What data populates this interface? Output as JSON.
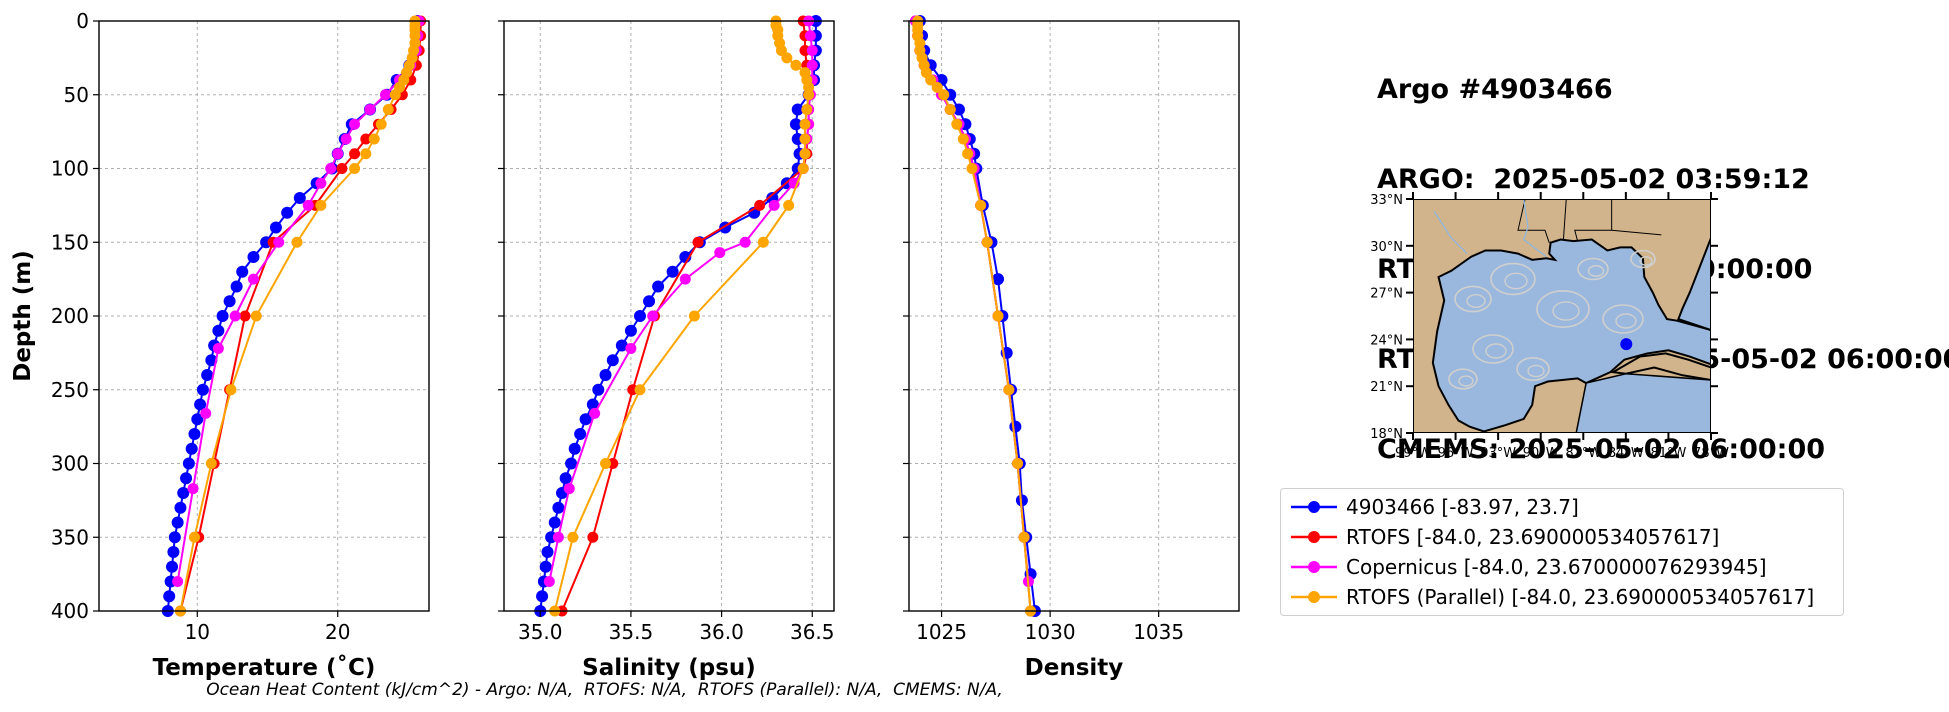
{
  "title_lines": [
    "Argo #4903466",
    "ARGO:  2025-05-02 03:59:12",
    "RTOFS: 2025-05-02 00:00:00",
    "RTOFS (Parallel): 2025-05-02 06:00:00",
    "CMEMS: 2025-05-02 06:00:00"
  ],
  "footer": "Ocean Heat Content (kJ/cm^2) - Argo: N/A,  RTOFS: N/A,  RTOFS (Parallel): N/A,  CMEMS: N/A,",
  "colors": {
    "argo": "#0000ff",
    "rtofs": "#ff0000",
    "copernicus": "#ff00ff",
    "parallel": "#ffa500",
    "land": "#d2b48c",
    "ocean": "#9ab8dd",
    "stream": "#cfcfcf"
  },
  "legend": [
    {
      "label": "4903466 [-83.97, 23.7]",
      "color": "#0000ff"
    },
    {
      "label": "RTOFS [-84.0, 23.690000534057617]",
      "color": "#ff0000"
    },
    {
      "label": "Copernicus [-84.0, 23.670000076293945]",
      "color": "#ff00ff"
    },
    {
      "label": "RTOFS (Parallel) [-84.0, 23.690000534057617]",
      "color": "#ffa500"
    }
  ],
  "map": {
    "lat_labels": [
      "33°N",
      "30°N",
      "27°N",
      "24°N",
      "21°N",
      "18°N"
    ],
    "lon_labels": [
      "99°W",
      "96°W",
      "93°W",
      "90°W",
      "87°W",
      "84°W",
      "81°W",
      "78°W"
    ],
    "lon_range": [
      -99,
      -78
    ],
    "lat_range": [
      18,
      33
    ],
    "float_position": [
      -83.97,
      23.7
    ]
  },
  "chart_data": [
    {
      "type": "line",
      "xlabel": "Temperature (˚C)",
      "ylabel": "Depth (m)",
      "xlim": [
        3,
        26.5
      ],
      "ylim": [
        400,
        0
      ],
      "xticks": [
        10,
        20
      ],
      "yticks": [
        0,
        50,
        100,
        150,
        200,
        250,
        300,
        350,
        400
      ],
      "grid": true,
      "series": [
        {
          "name": "4903466",
          "color": "#0000ff",
          "depth": [
            0,
            10,
            20,
            30,
            40,
            50,
            60,
            70,
            80,
            90,
            100,
            110,
            120,
            130,
            140,
            150,
            160,
            170,
            180,
            190,
            200,
            210,
            220,
            230,
            240,
            250,
            260,
            270,
            280,
            290,
            300,
            310,
            320,
            330,
            340,
            350,
            360,
            370,
            380,
            390,
            400
          ],
          "values": [
            25.7,
            25.6,
            25.5,
            25.1,
            24.2,
            23.5,
            22.3,
            21.0,
            20.5,
            20.0,
            19.6,
            18.5,
            17.3,
            16.4,
            15.6,
            14.9,
            14.0,
            13.2,
            12.8,
            12.3,
            11.8,
            11.5,
            11.2,
            11.0,
            10.7,
            10.4,
            10.2,
            10.0,
            9.8,
            9.6,
            9.4,
            9.2,
            9.0,
            8.8,
            8.6,
            8.4,
            8.3,
            8.2,
            8.1,
            8.0,
            7.9
          ]
        },
        {
          "name": "RTOFS",
          "color": "#ff0000",
          "depth": [
            0,
            10,
            20,
            30,
            40,
            50,
            60,
            70,
            80,
            90,
            100,
            125,
            150,
            200,
            250,
            300,
            350,
            400
          ],
          "values": [
            25.9,
            25.9,
            25.8,
            25.6,
            25.2,
            24.6,
            23.8,
            22.9,
            22.0,
            21.2,
            20.3,
            18.4,
            15.4,
            13.4,
            12.3,
            11.2,
            10.1,
            8.8
          ]
        },
        {
          "name": "Copernicus",
          "color": "#ff00ff",
          "depth": [
            0,
            10,
            20,
            30,
            40,
            50,
            60,
            70,
            80,
            90,
            100,
            110,
            125,
            150,
            175,
            200,
            222,
            266,
            317,
            380
          ],
          "values": [
            25.8,
            25.7,
            25.6,
            25.2,
            24.4,
            23.4,
            22.3,
            21.2,
            20.6,
            20.0,
            19.5,
            18.8,
            17.9,
            15.8,
            14.0,
            12.7,
            11.5,
            10.6,
            9.7,
            8.6
          ]
        },
        {
          "name": "RTOFS (Parallel)",
          "color": "#ffa500",
          "depth": [
            0,
            3,
            6,
            10,
            15,
            20,
            25,
            30,
            35,
            40,
            45,
            50,
            60,
            70,
            80,
            90,
            100,
            125,
            150,
            200,
            250,
            300,
            350,
            400
          ],
          "values": [
            25.5,
            25.5,
            25.5,
            25.5,
            25.5,
            25.4,
            25.3,
            25.1,
            24.9,
            24.7,
            24.4,
            24.1,
            23.6,
            23.1,
            22.6,
            22.0,
            21.2,
            18.8,
            17.1,
            14.2,
            12.4,
            11.0,
            9.8,
            8.8
          ]
        }
      ]
    },
    {
      "type": "line",
      "xlabel": "Salinity (psu)",
      "ylabel": "",
      "xlim": [
        34.8,
        36.62
      ],
      "ylim": [
        400,
        0
      ],
      "xticks": [
        35.0,
        35.5,
        36.0,
        36.5
      ],
      "yticks": [
        0,
        50,
        100,
        150,
        200,
        250,
        300,
        350,
        400
      ],
      "grid": true,
      "series": [
        {
          "name": "4903466",
          "color": "#0000ff",
          "depth": [
            0,
            10,
            20,
            30,
            40,
            50,
            60,
            70,
            80,
            90,
            100,
            110,
            120,
            130,
            140,
            150,
            160,
            170,
            180,
            190,
            200,
            210,
            220,
            230,
            240,
            250,
            260,
            270,
            280,
            290,
            300,
            310,
            320,
            330,
            340,
            350,
            360,
            370,
            380,
            390,
            400
          ],
          "values": [
            36.52,
            36.52,
            36.52,
            36.51,
            36.51,
            36.48,
            36.42,
            36.41,
            36.42,
            36.43,
            36.42,
            36.36,
            36.28,
            36.18,
            36.02,
            35.88,
            35.8,
            35.73,
            35.65,
            35.6,
            35.55,
            35.5,
            35.45,
            35.4,
            35.36,
            35.32,
            35.29,
            35.25,
            35.22,
            35.19,
            35.17,
            35.14,
            35.12,
            35.1,
            35.08,
            35.06,
            35.04,
            35.03,
            35.02,
            35.01,
            35.0
          ]
        },
        {
          "name": "RTOFS",
          "color": "#ff0000",
          "depth": [
            0,
            10,
            20,
            30,
            40,
            50,
            60,
            70,
            80,
            90,
            100,
            125,
            150,
            200,
            250,
            300,
            350,
            400
          ],
          "values": [
            36.45,
            36.46,
            36.46,
            36.47,
            36.48,
            36.48,
            36.48,
            36.48,
            36.47,
            36.47,
            36.45,
            36.21,
            35.87,
            35.63,
            35.51,
            35.4,
            35.29,
            35.12
          ]
        },
        {
          "name": "Copernicus",
          "color": "#ff00ff",
          "depth": [
            0,
            10,
            20,
            30,
            40,
            50,
            60,
            70,
            80,
            90,
            100,
            110,
            125,
            150,
            157,
            175,
            200,
            222,
            266,
            317,
            350,
            380
          ],
          "values": [
            36.48,
            36.49,
            36.5,
            36.5,
            36.5,
            36.49,
            36.48,
            36.48,
            36.47,
            36.46,
            36.45,
            36.4,
            36.29,
            36.13,
            35.99,
            35.8,
            35.62,
            35.5,
            35.3,
            35.16,
            35.1,
            35.05
          ]
        },
        {
          "name": "RTOFS (Parallel)",
          "color": "#ffa500",
          "depth": [
            0,
            3,
            6,
            10,
            15,
            20,
            25,
            30,
            35,
            40,
            45,
            50,
            60,
            70,
            80,
            90,
            100,
            125,
            150,
            200,
            250,
            300,
            350,
            400
          ],
          "values": [
            36.3,
            36.3,
            36.31,
            36.31,
            36.32,
            36.33,
            36.36,
            36.41,
            36.46,
            36.47,
            36.48,
            36.48,
            36.47,
            36.46,
            36.46,
            36.46,
            36.45,
            36.37,
            36.23,
            35.85,
            35.55,
            35.36,
            35.18,
            35.08
          ]
        }
      ]
    },
    {
      "type": "line",
      "xlabel": "Density",
      "ylabel": "",
      "xlim": [
        1023.5,
        1038.7
      ],
      "ylim": [
        400,
        0
      ],
      "xticks": [
        1025,
        1030,
        1035
      ],
      "yticks": [
        0,
        50,
        100,
        150,
        200,
        250,
        300,
        350,
        400
      ],
      "grid": true,
      "series": [
        {
          "name": "4903466",
          "color": "#0000ff",
          "depth": [
            0,
            10,
            20,
            30,
            40,
            50,
            60,
            70,
            80,
            90,
            100,
            125,
            150,
            175,
            200,
            225,
            250,
            275,
            300,
            325,
            350,
            375,
            400
          ],
          "values": [
            1024.0,
            1024.1,
            1024.2,
            1024.5,
            1025.0,
            1025.4,
            1025.8,
            1026.1,
            1026.3,
            1026.5,
            1026.6,
            1026.9,
            1027.3,
            1027.6,
            1027.8,
            1028.0,
            1028.2,
            1028.4,
            1028.6,
            1028.7,
            1028.9,
            1029.1,
            1029.3
          ]
        },
        {
          "name": "RTOFS",
          "color": "#ff0000",
          "depth": [
            0,
            10,
            20,
            30,
            40,
            50,
            60,
            70,
            80,
            90,
            100,
            125,
            150,
            200,
            250,
            300,
            350,
            400
          ],
          "values": [
            1023.8,
            1023.9,
            1024.0,
            1024.2,
            1024.6,
            1025.0,
            1025.4,
            1025.8,
            1026.1,
            1026.3,
            1026.5,
            1026.8,
            1027.1,
            1027.6,
            1028.1,
            1028.5,
            1028.8,
            1029.1
          ]
        },
        {
          "name": "Copernicus",
          "color": "#ff00ff",
          "depth": [
            0,
            10,
            20,
            30,
            40,
            50,
            60,
            70,
            80,
            90,
            100,
            125,
            150,
            200,
            250,
            300,
            350,
            380
          ],
          "values": [
            1023.8,
            1023.9,
            1024.0,
            1024.2,
            1024.6,
            1025.0,
            1025.4,
            1025.8,
            1026.1,
            1026.3,
            1026.5,
            1026.8,
            1027.1,
            1027.6,
            1028.1,
            1028.5,
            1028.8,
            1029.0
          ]
        },
        {
          "name": "RTOFS (Parallel)",
          "color": "#ffa500",
          "depth": [
            0,
            3,
            6,
            10,
            15,
            20,
            25,
            30,
            35,
            40,
            45,
            50,
            60,
            70,
            80,
            90,
            100,
            125,
            150,
            200,
            250,
            300,
            350,
            400
          ],
          "values": [
            1023.9,
            1023.9,
            1023.9,
            1023.9,
            1024.0,
            1024.0,
            1024.1,
            1024.2,
            1024.3,
            1024.5,
            1024.8,
            1025.1,
            1025.4,
            1025.7,
            1026.0,
            1026.2,
            1026.4,
            1026.8,
            1027.1,
            1027.6,
            1028.1,
            1028.5,
            1028.8,
            1029.1
          ]
        }
      ]
    }
  ]
}
